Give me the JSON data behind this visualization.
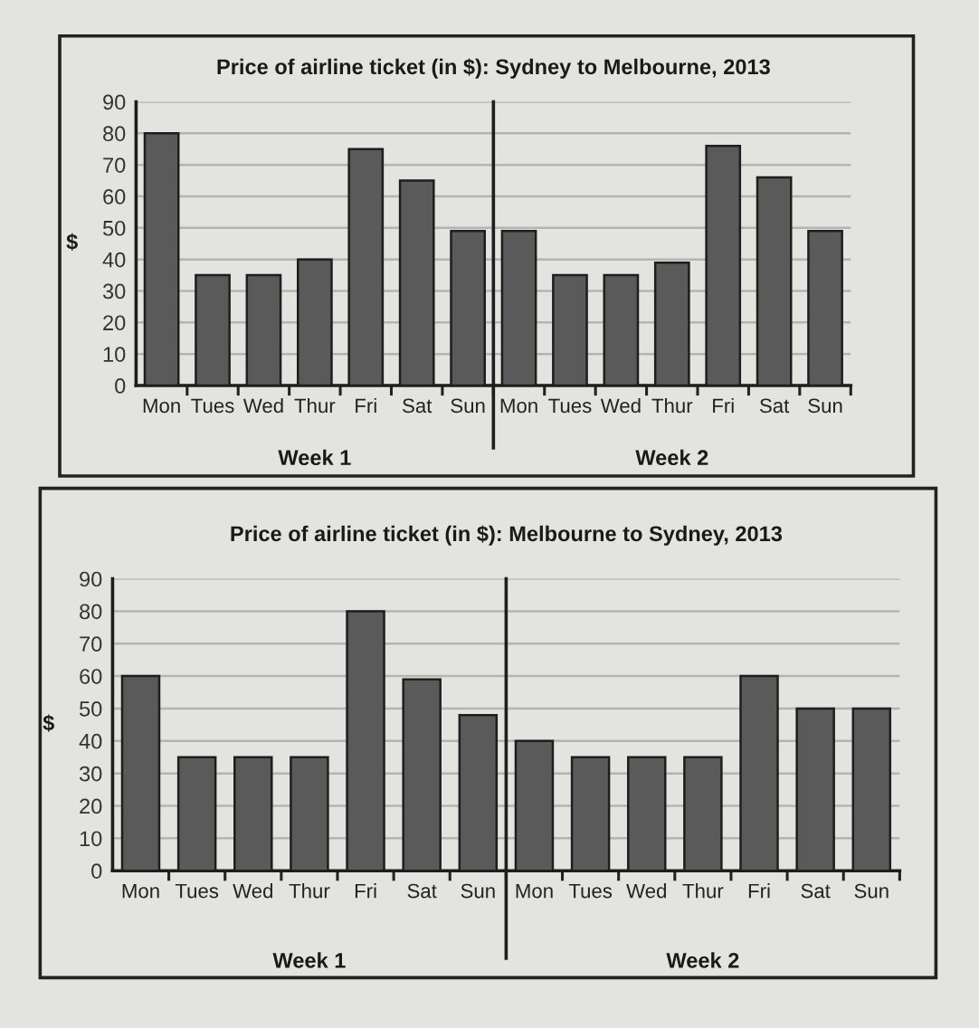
{
  "chart_data": [
    {
      "type": "bar",
      "title": "Price of airline ticket (in $): Sydney to Melbourne, 2013",
      "ylabel": "$",
      "xlabel": "Week 1",
      "categories": [
        "Mon",
        "Tues",
        "Wed",
        "Thur",
        "Fri",
        "Sat",
        "Sun"
      ],
      "values": [
        80,
        35,
        35,
        40,
        75,
        65,
        49
      ],
      "color": "#5a5a5a",
      "ylim": [
        0,
        90
      ],
      "yticks": [
        0,
        10,
        20,
        30,
        40,
        50,
        60,
        70,
        80,
        90
      ],
      "grid": "y"
    },
    {
      "type": "bar",
      "xlabel": "Week 2",
      "categories": [
        "Mon",
        "Tues",
        "Wed",
        "Thur",
        "Fri",
        "Sat",
        "Sun"
      ],
      "values": [
        49,
        35,
        35,
        39,
        76,
        66,
        49
      ],
      "color": "#5a5a5a",
      "ylim": [
        0,
        90
      ],
      "yticks": [
        0,
        10,
        20,
        30,
        40,
        50,
        60,
        70,
        80,
        90
      ],
      "grid": "y",
      "tick_labels": "x"
    },
    {
      "type": "bar",
      "title": "Price of airline ticket (in $): Melbourne to Sydney, 2013",
      "ylabel": "$",
      "xlabel": "Week 1",
      "categories": [
        "Mon",
        "Tues",
        "Wed",
        "Thur",
        "Fri",
        "Sat",
        "Sun"
      ],
      "values": [
        60,
        35,
        35,
        35,
        80,
        59,
        48
      ],
      "color": "#5a5a5a",
      "ylim": [
        0,
        90
      ],
      "yticks": [
        0,
        10,
        20,
        30,
        40,
        50,
        60,
        70,
        80,
        90
      ],
      "grid": "y"
    },
    {
      "type": "bar",
      "xlabel": "Week 2",
      "categories": [
        "Mon",
        "Tues",
        "Wed",
        "Thur",
        "Fri",
        "Sat",
        "Sun"
      ],
      "values": [
        40,
        35,
        35,
        35,
        60,
        50,
        50
      ],
      "color": "#5a5a5a",
      "ylim": [
        0,
        90
      ],
      "yticks": [
        0,
        10,
        20,
        30,
        40,
        50,
        60,
        70,
        80,
        90
      ],
      "grid": "y",
      "tick_labels": "x"
    }
  ]
}
